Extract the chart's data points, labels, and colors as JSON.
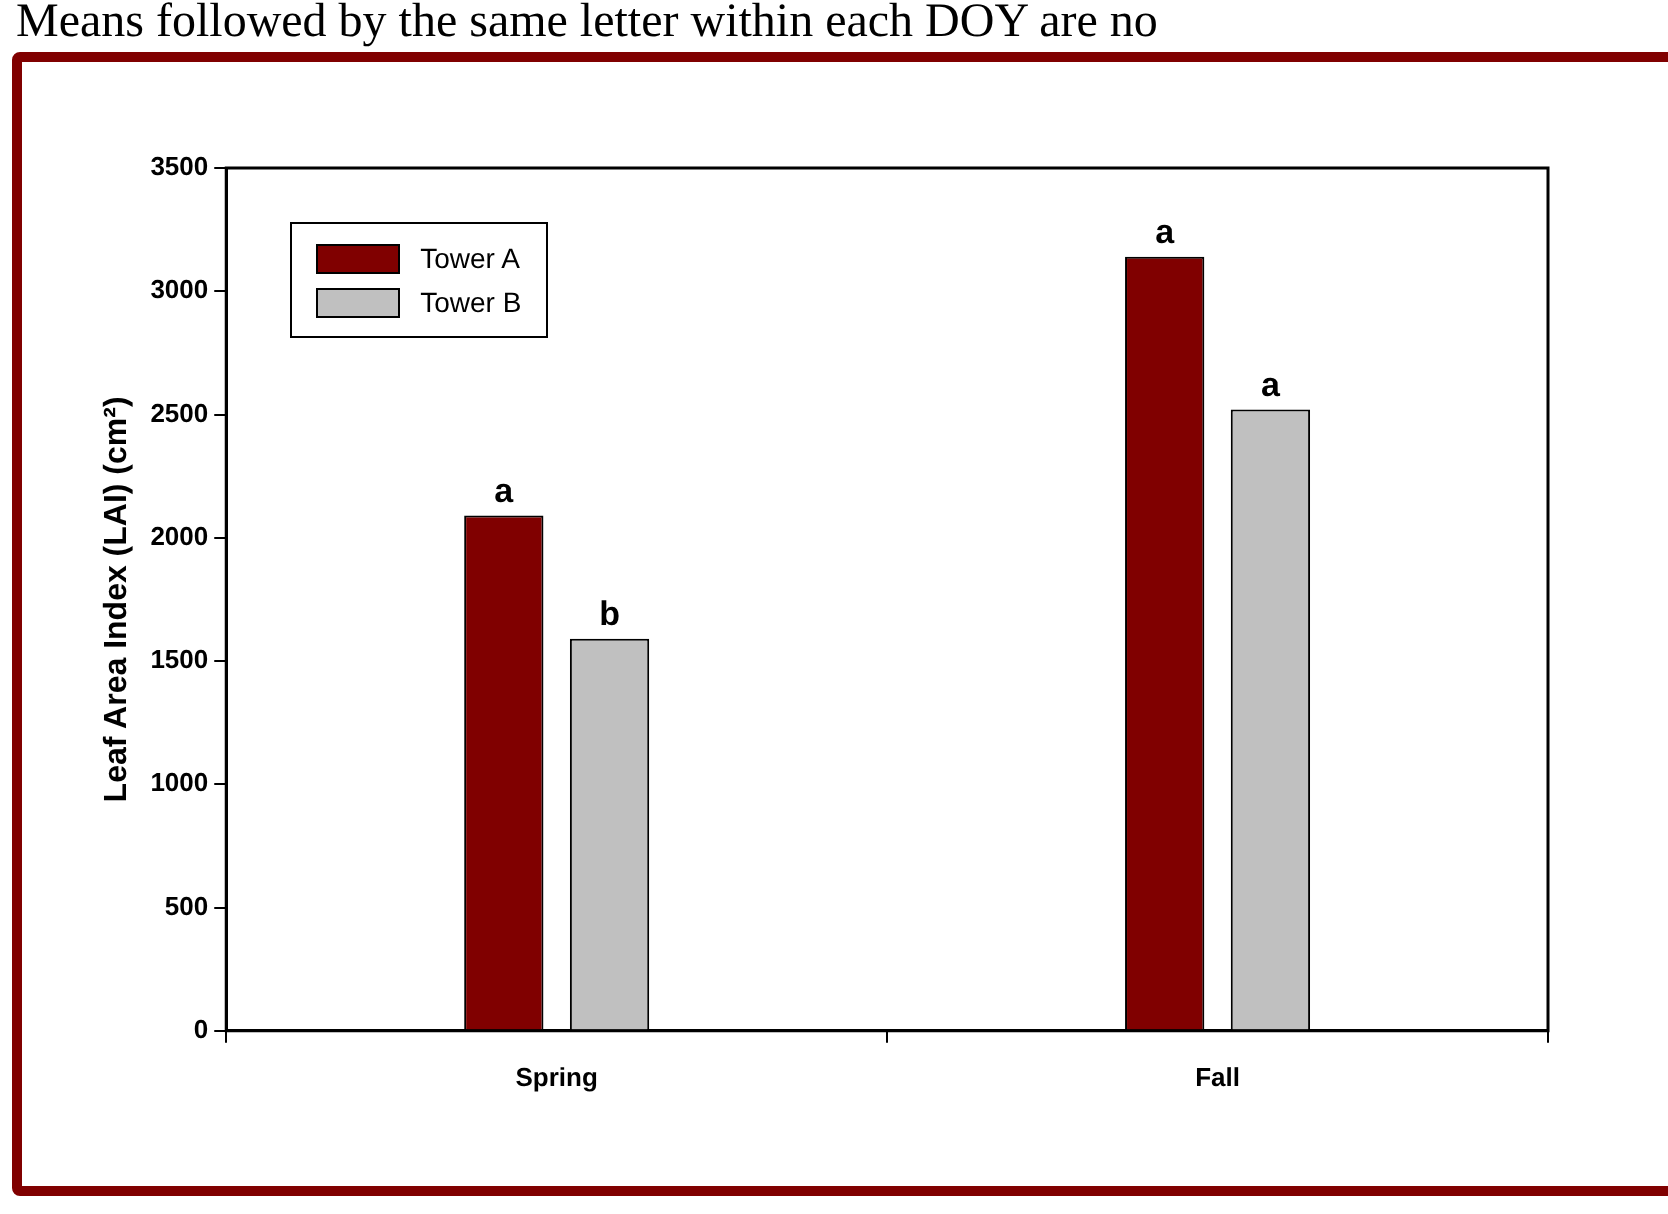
{
  "chart_data": {
    "type": "bar",
    "ylabel": "Leaf Area Index (LAI) (cm²)",
    "annotations": [
      "Means followed by the same letter within each DOY are no"
    ],
    "categories": [
      "Spring",
      "Fall"
    ],
    "series": [
      {
        "name": "Tower A",
        "color": "#800000",
        "values": [
          2090,
          3140
        ],
        "value_labels": [
          "a",
          "a"
        ]
      },
      {
        "name": "Tower B",
        "color": "#c0c0c0",
        "values": [
          1590,
          2520
        ],
        "value_labels": [
          "b",
          "a"
        ]
      }
    ],
    "ylim": [
      0,
      3500
    ],
    "yticks": [
      0,
      500,
      1000,
      1500,
      2000,
      2500,
      3000,
      3500
    ],
    "grid": false,
    "legend": "top left"
  }
}
